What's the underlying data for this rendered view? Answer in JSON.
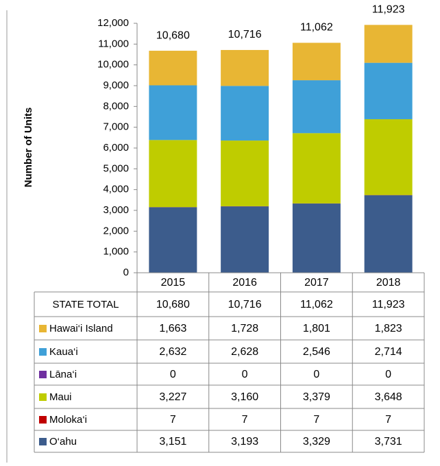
{
  "chart_data": {
    "type": "stacked-bar",
    "y_label": "Number of Units",
    "categories": [
      "2015",
      "2016",
      "2017",
      "2018"
    ],
    "total_name": "STATE TOTAL",
    "totals": [
      10680,
      10716,
      11062,
      11923
    ],
    "total_labels": [
      "10,680",
      "10,716",
      "11,062",
      "11,923"
    ],
    "series": [
      {
        "name": "Hawai‘i Island",
        "color": "#e8b634",
        "values": [
          1663,
          1728,
          1801,
          1823
        ],
        "value_labels": [
          "1,663",
          "1,728",
          "1,801",
          "1,823"
        ]
      },
      {
        "name": "Kaua‘i",
        "color": "#3fa0d8",
        "values": [
          2632,
          2628,
          2546,
          2714
        ],
        "value_labels": [
          "2,632",
          "2,628",
          "2,546",
          "2,714"
        ]
      },
      {
        "name": "Lāna‘i",
        "color": "#7030a0",
        "values": [
          0,
          0,
          0,
          0
        ]
      },
      {
        "name": "Maui",
        "color": "#bfcc00",
        "values": [
          3227,
          3160,
          3379,
          3648
        ],
        "value_labels": [
          "3,227",
          "3,160",
          "3,379",
          "3,648"
        ]
      },
      {
        "name": "Moloka‘i",
        "color": "#c00000",
        "values": [
          7,
          7,
          7,
          7
        ]
      },
      {
        "name": "O‘ahu",
        "color": "#3c5c8c",
        "values": [
          3151,
          3193,
          3329,
          3731
        ],
        "value_labels": [
          "3,151",
          "3,193",
          "3,329",
          "3,731"
        ]
      }
    ],
    "ylim": [
      0,
      12000
    ],
    "yticks": [
      0,
      {
        "value": 1000,
        "label": "1,000"
      },
      {
        "value": 2000,
        "label": "2,000"
      },
      {
        "value": 3000,
        "label": "3,000"
      },
      {
        "value": 4000,
        "label": "4,000"
      },
      {
        "value": 5000,
        "label": "5,000"
      },
      {
        "value": 6000,
        "label": "6,000"
      },
      {
        "value": 7000,
        "label": "7,000"
      },
      {
        "value": 8000,
        "label": "8,000"
      },
      {
        "value": 9000,
        "label": "9,000"
      },
      {
        "value": 10000,
        "label": "10,000"
      },
      {
        "value": 11000,
        "label": "11,000"
      },
      {
        "value": 12000,
        "label": "12,000"
      }
    ]
  }
}
